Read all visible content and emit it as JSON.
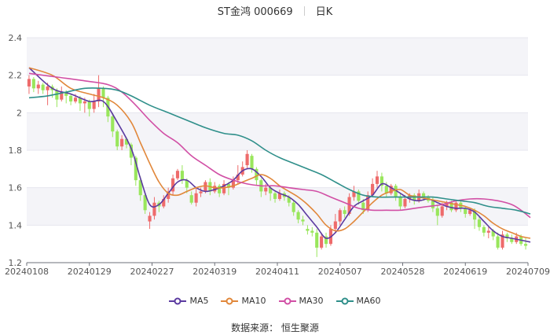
{
  "title": {
    "name": "ST金鸿 000669",
    "period": "日K"
  },
  "source": "数据来源： 恒生聚源",
  "legend": [
    {
      "key": "ma5",
      "label": "MA5",
      "color": "#5b3aa0"
    },
    {
      "key": "ma10",
      "label": "MA10",
      "color": "#e1873a"
    },
    {
      "key": "ma30",
      "label": "MA30",
      "color": "#d14fa5"
    },
    {
      "key": "ma60",
      "label": "MA60",
      "color": "#2f8f8a"
    }
  ],
  "chart_data": {
    "type": "candlestick",
    "ylim": [
      1.2,
      2.4
    ],
    "yticks": [
      1.2,
      1.4,
      1.6,
      1.8,
      2.0,
      2.2,
      2.4
    ],
    "ytick_labels": [
      "1.2",
      "1.4",
      "1.6",
      "1.8",
      "2",
      "2.2",
      "2.4"
    ],
    "x_tick_labels": [
      "20240108",
      "20240129",
      "20240227",
      "20240319",
      "20240411",
      "20240507",
      "20240528",
      "20240619",
      "20240709"
    ],
    "colors": {
      "up": "#ee6b6b",
      "down": "#99e65c",
      "grid": "#e6e6ee",
      "band": "#f4f4f8"
    },
    "candles": [
      [
        2.14,
        2.18,
        2.1,
        2.2
      ],
      [
        2.18,
        2.13,
        2.11,
        2.19
      ],
      [
        2.13,
        2.15,
        2.1,
        2.17
      ],
      [
        2.15,
        2.12,
        2.1,
        2.16
      ],
      [
        2.12,
        2.14,
        2.04,
        2.16
      ],
      [
        2.14,
        2.12,
        2.08,
        2.15
      ],
      [
        2.12,
        2.07,
        2.03,
        2.13
      ],
      [
        2.07,
        2.11,
        2.06,
        2.14
      ],
      [
        2.11,
        2.09,
        2.05,
        2.12
      ],
      [
        2.09,
        2.06,
        2.04,
        2.1
      ],
      [
        2.06,
        2.08,
        2.05,
        2.1
      ],
      [
        2.08,
        2.05,
        2.01,
        2.09
      ],
      [
        2.05,
        2.06,
        2.0,
        2.08
      ],
      [
        2.06,
        2.02,
        1.98,
        2.07
      ],
      [
        2.02,
        2.06,
        2.0,
        2.1
      ],
      [
        2.06,
        2.13,
        2.03,
        2.2
      ],
      [
        2.13,
        2.08,
        2.03,
        2.14
      ],
      [
        2.08,
        1.98,
        1.95,
        2.09
      ],
      [
        1.98,
        1.9,
        1.87,
        2.0
      ],
      [
        1.9,
        1.82,
        1.8,
        1.91
      ],
      [
        1.82,
        1.86,
        1.8,
        1.88
      ],
      [
        1.86,
        1.83,
        1.81,
        1.87
      ],
      [
        1.83,
        1.76,
        1.72,
        1.84
      ],
      [
        1.76,
        1.64,
        1.61,
        1.77
      ],
      [
        1.64,
        1.56,
        1.53,
        1.66
      ],
      [
        1.56,
        1.48,
        1.46,
        1.57
      ],
      [
        1.42,
        1.45,
        1.38,
        1.47
      ],
      [
        1.45,
        1.52,
        1.43,
        1.55
      ],
      [
        1.52,
        1.5,
        1.47,
        1.53
      ],
      [
        1.5,
        1.54,
        1.49,
        1.56
      ],
      [
        1.54,
        1.58,
        1.52,
        1.6
      ],
      [
        1.58,
        1.65,
        1.56,
        1.67
      ],
      [
        1.65,
        1.69,
        1.64,
        1.7
      ],
      [
        1.69,
        1.64,
        1.62,
        1.72
      ],
      [
        1.64,
        1.6,
        1.57,
        1.65
      ],
      [
        1.56,
        1.52,
        1.51,
        1.58
      ],
      [
        1.52,
        1.57,
        1.5,
        1.6
      ],
      [
        1.57,
        1.58,
        1.55,
        1.6
      ],
      [
        1.58,
        1.63,
        1.57,
        1.64
      ],
      [
        1.63,
        1.58,
        1.56,
        1.65
      ],
      [
        1.58,
        1.61,
        1.57,
        1.63
      ],
      [
        1.61,
        1.57,
        1.55,
        1.62
      ],
      [
        1.57,
        1.62,
        1.56,
        1.64
      ],
      [
        1.62,
        1.6,
        1.56,
        1.63
      ],
      [
        1.6,
        1.64,
        1.59,
        1.66
      ],
      [
        1.64,
        1.67,
        1.62,
        1.72
      ],
      [
        1.67,
        1.71,
        1.66,
        1.74
      ],
      [
        1.72,
        1.78,
        1.7,
        1.8
      ],
      [
        1.77,
        1.7,
        1.68,
        1.78
      ],
      [
        1.7,
        1.64,
        1.61,
        1.71
      ],
      [
        1.64,
        1.58,
        1.55,
        1.65
      ],
      [
        1.58,
        1.6,
        1.56,
        1.62
      ],
      [
        1.6,
        1.57,
        1.53,
        1.61
      ],
      [
        1.57,
        1.54,
        1.52,
        1.58
      ],
      [
        1.54,
        1.57,
        1.53,
        1.59
      ],
      [
        1.57,
        1.55,
        1.53,
        1.58
      ],
      [
        1.55,
        1.52,
        1.5,
        1.56
      ],
      [
        1.52,
        1.47,
        1.45,
        1.53
      ],
      [
        1.47,
        1.43,
        1.41,
        1.48
      ],
      [
        1.43,
        1.42,
        1.4,
        1.45
      ],
      [
        1.38,
        1.37,
        1.35,
        1.4
      ],
      [
        1.37,
        1.36,
        1.34,
        1.39
      ],
      [
        1.36,
        1.28,
        1.23,
        1.38
      ],
      [
        1.28,
        1.34,
        1.27,
        1.36
      ],
      [
        1.34,
        1.3,
        1.28,
        1.36
      ],
      [
        1.3,
        1.38,
        1.29,
        1.4
      ],
      [
        1.38,
        1.42,
        1.36,
        1.46
      ],
      [
        1.42,
        1.48,
        1.4,
        1.49
      ],
      [
        1.48,
        1.46,
        1.44,
        1.5
      ],
      [
        1.46,
        1.55,
        1.45,
        1.57
      ],
      [
        1.55,
        1.58,
        1.53,
        1.61
      ],
      [
        1.58,
        1.53,
        1.51,
        1.59
      ],
      [
        1.52,
        1.48,
        1.46,
        1.54
      ],
      [
        1.48,
        1.56,
        1.47,
        1.58
      ],
      [
        1.56,
        1.62,
        1.55,
        1.65
      ],
      [
        1.62,
        1.66,
        1.6,
        1.69
      ],
      [
        1.66,
        1.61,
        1.58,
        1.68
      ],
      [
        1.61,
        1.57,
        1.55,
        1.63
      ],
      [
        1.57,
        1.61,
        1.56,
        1.62
      ],
      [
        1.61,
        1.55,
        1.53,
        1.62
      ],
      [
        1.55,
        1.5,
        1.48,
        1.57
      ],
      [
        1.5,
        1.54,
        1.49,
        1.56
      ],
      [
        1.54,
        1.56,
        1.52,
        1.57
      ],
      [
        1.56,
        1.53,
        1.51,
        1.57
      ],
      [
        1.53,
        1.57,
        1.52,
        1.59
      ],
      [
        1.57,
        1.55,
        1.53,
        1.58
      ],
      [
        1.55,
        1.53,
        1.52,
        1.56
      ],
      [
        1.53,
        1.49,
        1.47,
        1.55
      ],
      [
        1.49,
        1.45,
        1.4,
        1.51
      ],
      [
        1.45,
        1.5,
        1.44,
        1.52
      ],
      [
        1.5,
        1.52,
        1.48,
        1.53
      ],
      [
        1.52,
        1.48,
        1.47,
        1.53
      ],
      [
        1.48,
        1.52,
        1.47,
        1.53
      ],
      [
        1.52,
        1.49,
        1.47,
        1.53
      ],
      [
        1.49,
        1.46,
        1.44,
        1.5
      ],
      [
        1.46,
        1.48,
        1.45,
        1.49
      ],
      [
        1.48,
        1.43,
        1.38,
        1.49
      ],
      [
        1.43,
        1.39,
        1.37,
        1.45
      ],
      [
        1.39,
        1.36,
        1.34,
        1.4
      ],
      [
        1.36,
        1.37,
        1.33,
        1.39
      ],
      [
        1.37,
        1.34,
        1.32,
        1.38
      ],
      [
        1.34,
        1.28,
        1.27,
        1.36
      ],
      [
        1.28,
        1.35,
        1.27,
        1.37
      ],
      [
        1.35,
        1.33,
        1.31,
        1.36
      ],
      [
        1.33,
        1.31,
        1.3,
        1.35
      ],
      [
        1.31,
        1.34,
        1.3,
        1.36
      ],
      [
        1.34,
        1.3,
        1.29,
        1.35
      ],
      [
        1.3,
        1.29,
        1.27,
        1.33
      ]
    ],
    "series": [
      {
        "name": "MA5",
        "values": [
          [
            0,
            2.24
          ],
          [
            5,
            2.13
          ],
          [
            9,
            2.1
          ],
          [
            13,
            2.06
          ],
          [
            16,
            2.06
          ],
          [
            19,
            1.95
          ],
          [
            22,
            1.81
          ],
          [
            24,
            1.65
          ],
          [
            26,
            1.51
          ],
          [
            28,
            1.51
          ],
          [
            30,
            1.57
          ],
          [
            32,
            1.63
          ],
          [
            34,
            1.64
          ],
          [
            36,
            1.6
          ],
          [
            38,
            1.58
          ],
          [
            40,
            1.59
          ],
          [
            42,
            1.61
          ],
          [
            44,
            1.64
          ],
          [
            46,
            1.69
          ],
          [
            48,
            1.7
          ],
          [
            50,
            1.66
          ],
          [
            52,
            1.6
          ],
          [
            54,
            1.57
          ],
          [
            56,
            1.55
          ],
          [
            58,
            1.51
          ],
          [
            60,
            1.45
          ],
          [
            62,
            1.39
          ],
          [
            64,
            1.33
          ],
          [
            66,
            1.36
          ],
          [
            68,
            1.43
          ],
          [
            70,
            1.5
          ],
          [
            72,
            1.53
          ],
          [
            74,
            1.56
          ],
          [
            76,
            1.62
          ],
          [
            78,
            1.6
          ],
          [
            80,
            1.57
          ],
          [
            82,
            1.54
          ],
          [
            84,
            1.53
          ],
          [
            86,
            1.54
          ],
          [
            88,
            1.52
          ],
          [
            90,
            1.5
          ],
          [
            92,
            1.49
          ],
          [
            94,
            1.49
          ],
          [
            96,
            1.47
          ],
          [
            98,
            1.42
          ],
          [
            100,
            1.37
          ],
          [
            102,
            1.34
          ],
          [
            104,
            1.33
          ],
          [
            106,
            1.32
          ],
          [
            108,
            1.31
          ]
        ]
      },
      {
        "name": "MA10",
        "values": [
          [
            0,
            2.24
          ],
          [
            5,
            2.2
          ],
          [
            9,
            2.13
          ],
          [
            13,
            2.1
          ],
          [
            16,
            2.08
          ],
          [
            19,
            2.04
          ],
          [
            22,
            1.95
          ],
          [
            24,
            1.84
          ],
          [
            26,
            1.73
          ],
          [
            28,
            1.63
          ],
          [
            30,
            1.57
          ],
          [
            32,
            1.56
          ],
          [
            34,
            1.58
          ],
          [
            36,
            1.6
          ],
          [
            38,
            1.61
          ],
          [
            40,
            1.6
          ],
          [
            42,
            1.6
          ],
          [
            44,
            1.61
          ],
          [
            46,
            1.63
          ],
          [
            48,
            1.65
          ],
          [
            50,
            1.67
          ],
          [
            52,
            1.65
          ],
          [
            54,
            1.61
          ],
          [
            56,
            1.58
          ],
          [
            58,
            1.55
          ],
          [
            60,
            1.51
          ],
          [
            62,
            1.46
          ],
          [
            64,
            1.4
          ],
          [
            66,
            1.37
          ],
          [
            68,
            1.38
          ],
          [
            70,
            1.42
          ],
          [
            72,
            1.47
          ],
          [
            74,
            1.52
          ],
          [
            76,
            1.56
          ],
          [
            78,
            1.58
          ],
          [
            80,
            1.59
          ],
          [
            82,
            1.56
          ],
          [
            84,
            1.55
          ],
          [
            86,
            1.54
          ],
          [
            88,
            1.53
          ],
          [
            90,
            1.52
          ],
          [
            92,
            1.51
          ],
          [
            94,
            1.5
          ],
          [
            96,
            1.48
          ],
          [
            98,
            1.45
          ],
          [
            100,
            1.41
          ],
          [
            102,
            1.38
          ],
          [
            104,
            1.36
          ],
          [
            106,
            1.34
          ],
          [
            108,
            1.33
          ]
        ]
      },
      {
        "name": "MA30",
        "values": [
          [
            0,
            2.21
          ],
          [
            6,
            2.19
          ],
          [
            12,
            2.17
          ],
          [
            17,
            2.15
          ],
          [
            20,
            2.11
          ],
          [
            23,
            2.04
          ],
          [
            26,
            1.96
          ],
          [
            29,
            1.89
          ],
          [
            32,
            1.84
          ],
          [
            35,
            1.77
          ],
          [
            38,
            1.72
          ],
          [
            41,
            1.67
          ],
          [
            44,
            1.64
          ],
          [
            47,
            1.62
          ],
          [
            50,
            1.61
          ],
          [
            53,
            1.61
          ],
          [
            56,
            1.6
          ],
          [
            59,
            1.59
          ],
          [
            62,
            1.58
          ],
          [
            65,
            1.55
          ],
          [
            68,
            1.52
          ],
          [
            71,
            1.49
          ],
          [
            74,
            1.48
          ],
          [
            77,
            1.48
          ],
          [
            80,
            1.48
          ],
          [
            83,
            1.49
          ],
          [
            86,
            1.5
          ],
          [
            89,
            1.51
          ],
          [
            92,
            1.53
          ],
          [
            95,
            1.54
          ],
          [
            98,
            1.54
          ],
          [
            101,
            1.53
          ],
          [
            104,
            1.51
          ],
          [
            106,
            1.48
          ],
          [
            108,
            1.44
          ]
        ]
      },
      {
        "name": "MA60",
        "values": [
          [
            0,
            2.08
          ],
          [
            4,
            2.09
          ],
          [
            8,
            2.11
          ],
          [
            12,
            2.13
          ],
          [
            16,
            2.13
          ],
          [
            19,
            2.12
          ],
          [
            22,
            2.09
          ],
          [
            26,
            2.04
          ],
          [
            30,
            2.0
          ],
          [
            34,
            1.96
          ],
          [
            38,
            1.92
          ],
          [
            42,
            1.89
          ],
          [
            45,
            1.88
          ],
          [
            48,
            1.85
          ],
          [
            51,
            1.8
          ],
          [
            54,
            1.76
          ],
          [
            57,
            1.73
          ],
          [
            60,
            1.7
          ],
          [
            63,
            1.67
          ],
          [
            66,
            1.63
          ],
          [
            69,
            1.59
          ],
          [
            72,
            1.56
          ],
          [
            75,
            1.55
          ],
          [
            78,
            1.55
          ],
          [
            81,
            1.55
          ],
          [
            84,
            1.55
          ],
          [
            87,
            1.55
          ],
          [
            90,
            1.54
          ],
          [
            93,
            1.53
          ],
          [
            96,
            1.52
          ],
          [
            99,
            1.5
          ],
          [
            102,
            1.49
          ],
          [
            105,
            1.48
          ],
          [
            108,
            1.46
          ]
        ]
      }
    ]
  }
}
